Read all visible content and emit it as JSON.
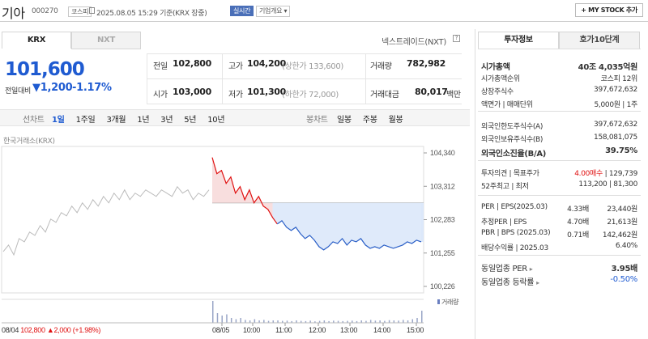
{
  "header": {
    "name": "기아",
    "code": "000270",
    "market_badge": "코스피",
    "date": "2025.08.05 15:29 기준(KRX 장중)",
    "realtime": "실시간",
    "overview": "기업개요",
    "mystock": "+ MY STOCK 추가"
  },
  "tabs": {
    "krx": "KRX",
    "nxt": "NXT",
    "nextrade": "넥스트레이드(NXT)"
  },
  "price": {
    "current": "101,600",
    "change_label": "전일대비",
    "change": "1,200",
    "change_pct": "-1.17%"
  },
  "stats": {
    "prev_label": "전일",
    "prev": "102,800",
    "high_label": "고가",
    "high": "104,200",
    "high_limit": "(상한가 133,600)",
    "volume_label": "거래량",
    "volume": "782,982",
    "open_label": "시가",
    "open": "103,000",
    "low_label": "저가",
    "low": "101,300",
    "low_limit": "(하한가 72,000)",
    "amount_label": "거래대금",
    "amount": "80,017",
    "amount_unit": "백만"
  },
  "periods": {
    "line_label": "선차트",
    "items": [
      "1일",
      "1주일",
      "3개월",
      "1년",
      "3년",
      "5년",
      "10년"
    ],
    "candle_label": "봉차트",
    "candles": [
      "일봉",
      "주봉",
      "월봉"
    ]
  },
  "chart_meta": {
    "exchange": "한국거래소(KRX)",
    "volume_label": "거래량",
    "prev_day_info": "08/04",
    "prev_day_price": "102,800",
    "prev_day_change": "2,000",
    "prev_day_pct": "(+1.98%)"
  },
  "chart_data": {
    "type": "line",
    "yticks": [
      "104,340",
      "103,312",
      "102,283",
      "101,255",
      "100,226"
    ],
    "ylim": [
      100226,
      104340
    ],
    "xticks": [
      "08/05",
      "10:00",
      "11:00",
      "12:00",
      "13:00",
      "14:00",
      "15:00"
    ],
    "prev_close": 102800,
    "prev_series": [
      101300,
      101500,
      101200,
      101700,
      101600,
      101900,
      101800,
      102100,
      101900,
      102300,
      102200,
      102500,
      102400,
      102700,
      102500,
      102800,
      102600,
      102900,
      102700,
      103000,
      102800,
      103100,
      102900,
      103200,
      102900,
      103100,
      103000,
      103200,
      103100,
      103000,
      103200,
      103100,
      103000,
      103300,
      103100,
      103200,
      102900,
      103100,
      103000,
      103200
    ],
    "today_series": [
      104200,
      103700,
      103800,
      103400,
      103600,
      103100,
      103300,
      102900,
      103200,
      102800,
      103000,
      102700,
      102600,
      102350,
      102150,
      102250,
      102050,
      101950,
      102050,
      101850,
      101700,
      101800,
      101650,
      101450,
      101350,
      101450,
      101600,
      101550,
      101700,
      101500,
      101650,
      101600,
      101700,
      101500,
      101400,
      101450,
      101400,
      101500,
      101450,
      101400,
      101450,
      101500,
      101600,
      101550,
      101650,
      101600
    ],
    "volume_today": [
      0.9,
      0.4,
      0.3,
      0.35,
      0.2,
      0.15,
      0.2,
      0.12,
      0.1,
      0.15,
      0.1,
      0.12,
      0.08,
      0.1,
      0.1,
      0.08,
      0.09,
      0.07,
      0.1,
      0.08,
      0.07,
      0.09,
      0.06,
      0.08,
      0.1,
      0.07,
      0.09,
      0.08,
      0.07,
      0.08,
      0.09,
      0.07,
      0.1,
      0.08,
      0.12,
      0.09,
      0.1,
      0.08,
      0.11,
      0.1,
      0.09,
      0.12,
      0.1,
      0.15,
      0.2,
      0.5
    ]
  },
  "right_panel": {
    "tab1": "투자정보",
    "tab2": "호가10단계",
    "rows1": [
      {
        "label": "시가총액",
        "value": "40조 4,035억원",
        "bold": true
      },
      {
        "label": "시가총액순위",
        "value": "코스피 12위"
      },
      {
        "label": "상장주식수",
        "value": "397,672,632"
      },
      {
        "label": "액면가 | 매매단위",
        "value": "5,000원 | 1주"
      }
    ],
    "rows2": [
      {
        "label": "외국인한도주식수(A)",
        "value": "397,672,632"
      },
      {
        "label": "외국인보유주식수(B)",
        "value": "158,081,075"
      },
      {
        "label": "외국인소진율(B/A)",
        "value": "39.75%",
        "bold": true
      }
    ],
    "opinion_label": "투자의견 | 목표주가",
    "opinion": "4.00매수",
    "target": "129,739",
    "week52_label": "52주최고 | 최저",
    "week52": "113,200 | 81,300",
    "per_rows": [
      {
        "label": "PER | EPS(2025.03)",
        "a": "4.33배",
        "b": "23,440원"
      },
      {
        "label": "추정PER | EPS",
        "a": "4.70배",
        "b": "21,613원"
      },
      {
        "label": "PBR | BPS (2025.03)",
        "a": "0.71배",
        "b": "142,462원"
      },
      {
        "label": "배당수익률 | 2025.03",
        "a": "",
        "b": "6.40%"
      }
    ],
    "sector_per_label": "동일업종 PER",
    "sector_per": "3.95배",
    "sector_rate_label": "동일업종 등락률",
    "sector_rate": "-0.50%"
  }
}
